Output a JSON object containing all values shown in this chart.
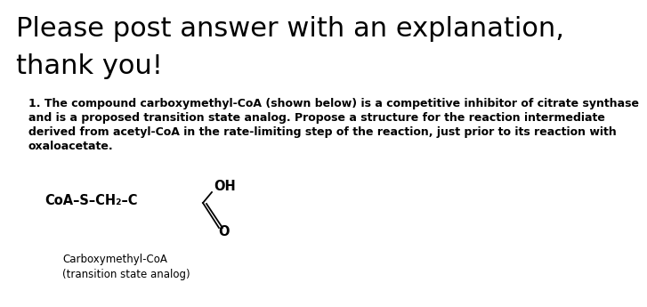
{
  "title_line1": "Please post answer with an explanation,",
  "title_line2": "thank you!",
  "title_fontsize": 22,
  "title_fontweight": "normal",
  "body_text_line1": "1. The compound carboxymethyl-CoA (shown below) is a competitive inhibitor of citrate synthase",
  "body_text_line2": "and is a proposed transition state analog. Propose a structure for the reaction intermediate",
  "body_text_line3": "derived from acetyl-CoA in the rate-limiting step of the reaction, just prior to its reaction with",
  "body_text_line4": "oxaloacetate.",
  "body_fontsize": 9.0,
  "body_fontweight": "bold",
  "caption_line1": "Carboxymethyl-CoA",
  "caption_line2": "(transition state analog)",
  "caption_fontsize": 8.5,
  "background_color": "#ffffff",
  "text_color": "#000000",
  "struct_label": "CoA–S–CH₂–C",
  "oh_label": "OH",
  "o_label": "O",
  "struct_fontsize": 10.5
}
